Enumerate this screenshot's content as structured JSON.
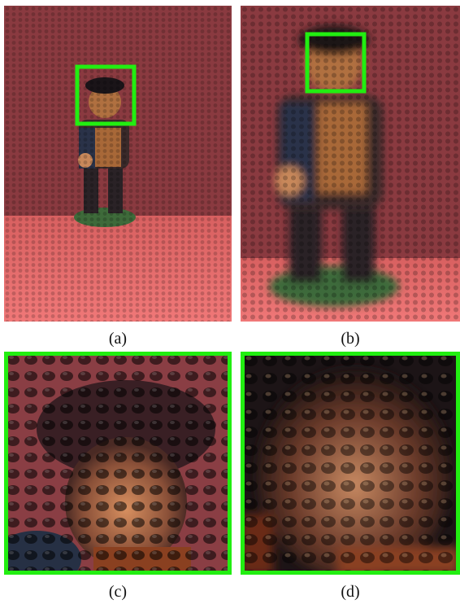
{
  "captions": {
    "a": "(a)",
    "b": "(b)",
    "c": "(c)",
    "d": "(d)"
  },
  "colors": {
    "background_wall": "#8a3a40",
    "floor": "#e06a6a",
    "highlight_box": "#22ee11",
    "figurine_dark": "#1a1418",
    "figurine_coat": "#2a3248",
    "figurine_skin": "#c07848",
    "figurine_base": "#3e6a3a"
  }
}
